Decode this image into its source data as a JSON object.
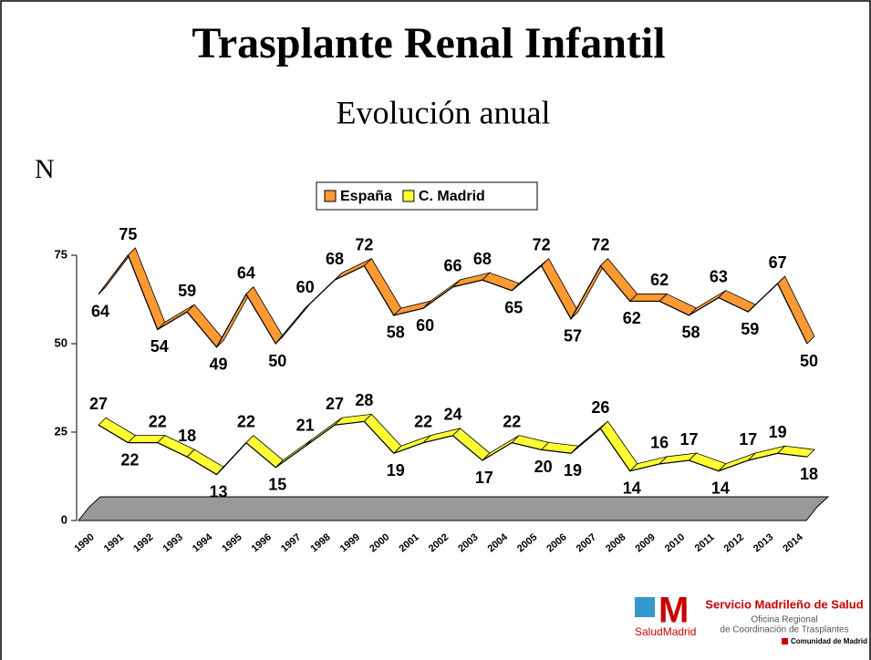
{
  "chart_data": {
    "type": "line3d",
    "title": "Trasplante Renal Infantil",
    "subtitle": "Evolución anual",
    "y_label": "N",
    "categories": [
      "1990",
      "1991",
      "1992",
      "1993",
      "1994",
      "1995",
      "1996",
      "1997",
      "1998",
      "1999",
      "2000",
      "2001",
      "2002",
      "2003",
      "2004",
      "2005",
      "2006",
      "2007",
      "2008",
      "2009",
      "2010",
      "2011",
      "2012",
      "2013",
      "2014"
    ],
    "series": [
      {
        "name": "España",
        "color": "#ff9933",
        "values": [
          64,
          75,
          54,
          59,
          49,
          64,
          50,
          60,
          68,
          72,
          58,
          60,
          66,
          68,
          65,
          72,
          57,
          72,
          62,
          62,
          58,
          63,
          59,
          67,
          50
        ]
      },
      {
        "name": "C. Madrid",
        "color": "#ffff33",
        "values": [
          27,
          22,
          22,
          18,
          13,
          22,
          15,
          21,
          27,
          28,
          19,
          22,
          24,
          17,
          22,
          20,
          19,
          26,
          14,
          16,
          17,
          14,
          17,
          19,
          18
        ]
      }
    ],
    "ylim": [
      0,
      75
    ],
    "yticks": [
      0,
      25,
      50,
      75
    ],
    "legend": "top"
  },
  "footer": {
    "service": "Servicio Madrileño de Salud",
    "office1": "Oficina Regional",
    "office2": "de Coordinación de Trasplantes",
    "brand": "SaludMadrid",
    "region": "Comunidad de Madrid"
  }
}
